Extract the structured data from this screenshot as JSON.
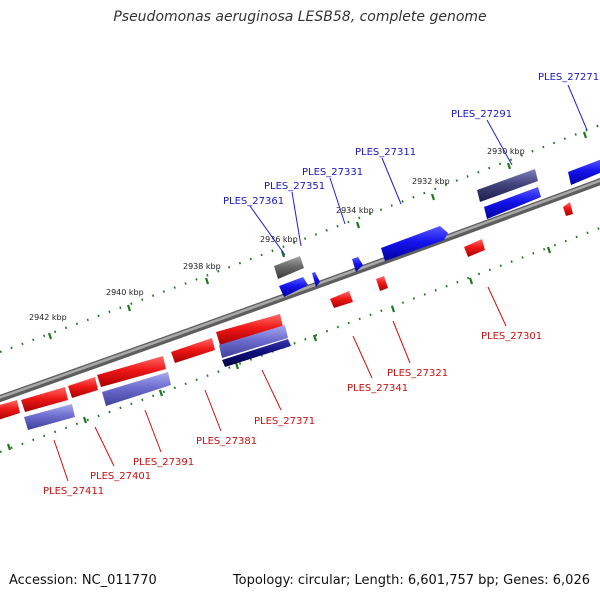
{
  "header": {
    "title": "Pseudomonas aeruginosa LESB58, complete genome"
  },
  "footer": {
    "accession": "Accession: NC_011770",
    "topology": "Topology: circular; Length: 6,601,757 bp; Genes: 6,026"
  },
  "scale_labels": [
    "2930 kbp",
    "2932 kbp",
    "2934 kbp",
    "2936 kbp",
    "2938 kbp",
    "2940 kbp",
    "2942 kbp"
  ],
  "forward_gene_labels": [
    "PLES_27271",
    "PLES_27291",
    "PLES_27311",
    "PLES_27331",
    "PLES_27351",
    "PLES_27361"
  ],
  "reverse_gene_labels": [
    "PLES_27301",
    "PLES_27321",
    "PLES_27341",
    "PLES_27371",
    "PLES_27381",
    "PLES_27391",
    "PLES_27401",
    "PLES_27411"
  ],
  "colors": {
    "forward_strand": "#1414e6",
    "reverse_strand": "#e61414",
    "other_gene": "#6e6ec8",
    "pseudo_gene": "#808080",
    "backbone": "#8a8a8a",
    "tick": "#1e7a1e"
  }
}
